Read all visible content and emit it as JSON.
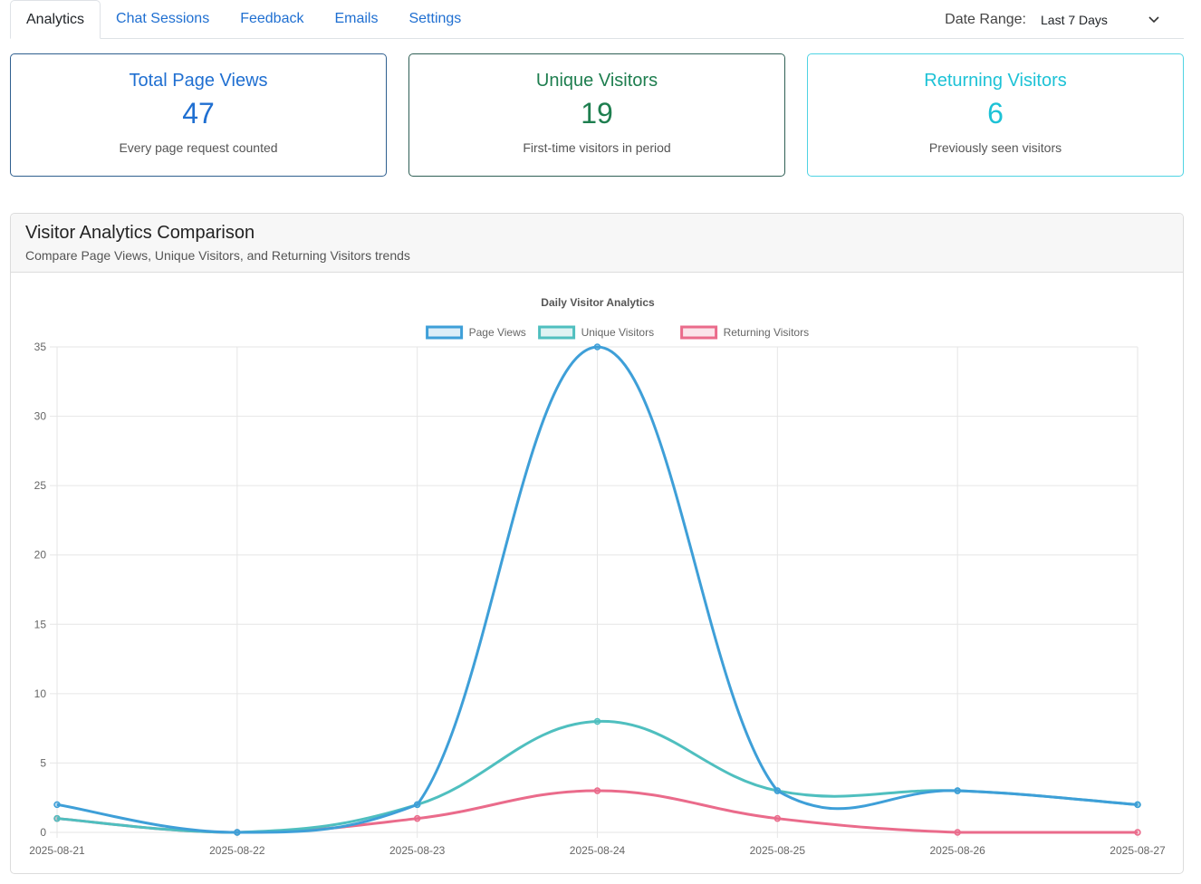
{
  "tabs": [
    {
      "label": "Analytics",
      "active": true
    },
    {
      "label": "Chat Sessions",
      "active": false
    },
    {
      "label": "Feedback",
      "active": false
    },
    {
      "label": "Emails",
      "active": false
    },
    {
      "label": "Settings",
      "active": false
    }
  ],
  "date_range": {
    "label": "Date Range:",
    "selected": "Last 7 Days"
  },
  "cards": [
    {
      "title": "Total Page Views",
      "value": "47",
      "subtitle": "Every page request counted",
      "color": "#1f6fd1",
      "border": "#2f5f8f"
    },
    {
      "title": "Unique Visitors",
      "value": "19",
      "subtitle": "First-time visitors in period",
      "color": "#1e7e4f",
      "border": "#2f5f55"
    },
    {
      "title": "Returning Visitors",
      "value": "6",
      "subtitle": "Previously seen visitors",
      "color": "#1dc2d6",
      "border": "#4fd3e3"
    }
  ],
  "panel": {
    "title": "Visitor Analytics Comparison",
    "subtitle": "Compare Page Views, Unique Visitors, and Returning Visitors trends"
  },
  "chart_data": {
    "type": "line",
    "title": "Daily Visitor Analytics",
    "categories": [
      "2025-08-21",
      "2025-08-22",
      "2025-08-23",
      "2025-08-24",
      "2025-08-25",
      "2025-08-26",
      "2025-08-27"
    ],
    "series": [
      {
        "name": "Page Views",
        "values": [
          2,
          0,
          2,
          35,
          3,
          3,
          2
        ],
        "color": "#3e9fd8"
      },
      {
        "name": "Unique Visitors",
        "values": [
          1,
          0,
          2,
          8,
          3,
          3,
          2
        ],
        "color": "#4fbfbf"
      },
      {
        "name": "Returning Visitors",
        "values": [
          1,
          0,
          1,
          3,
          1,
          0,
          0
        ],
        "color": "#ea6b8b"
      }
    ],
    "ylim": [
      0,
      35
    ],
    "yticks": [
      0,
      5,
      10,
      15,
      20,
      25,
      30,
      35
    ],
    "grid": true,
    "legend": "top-center"
  }
}
